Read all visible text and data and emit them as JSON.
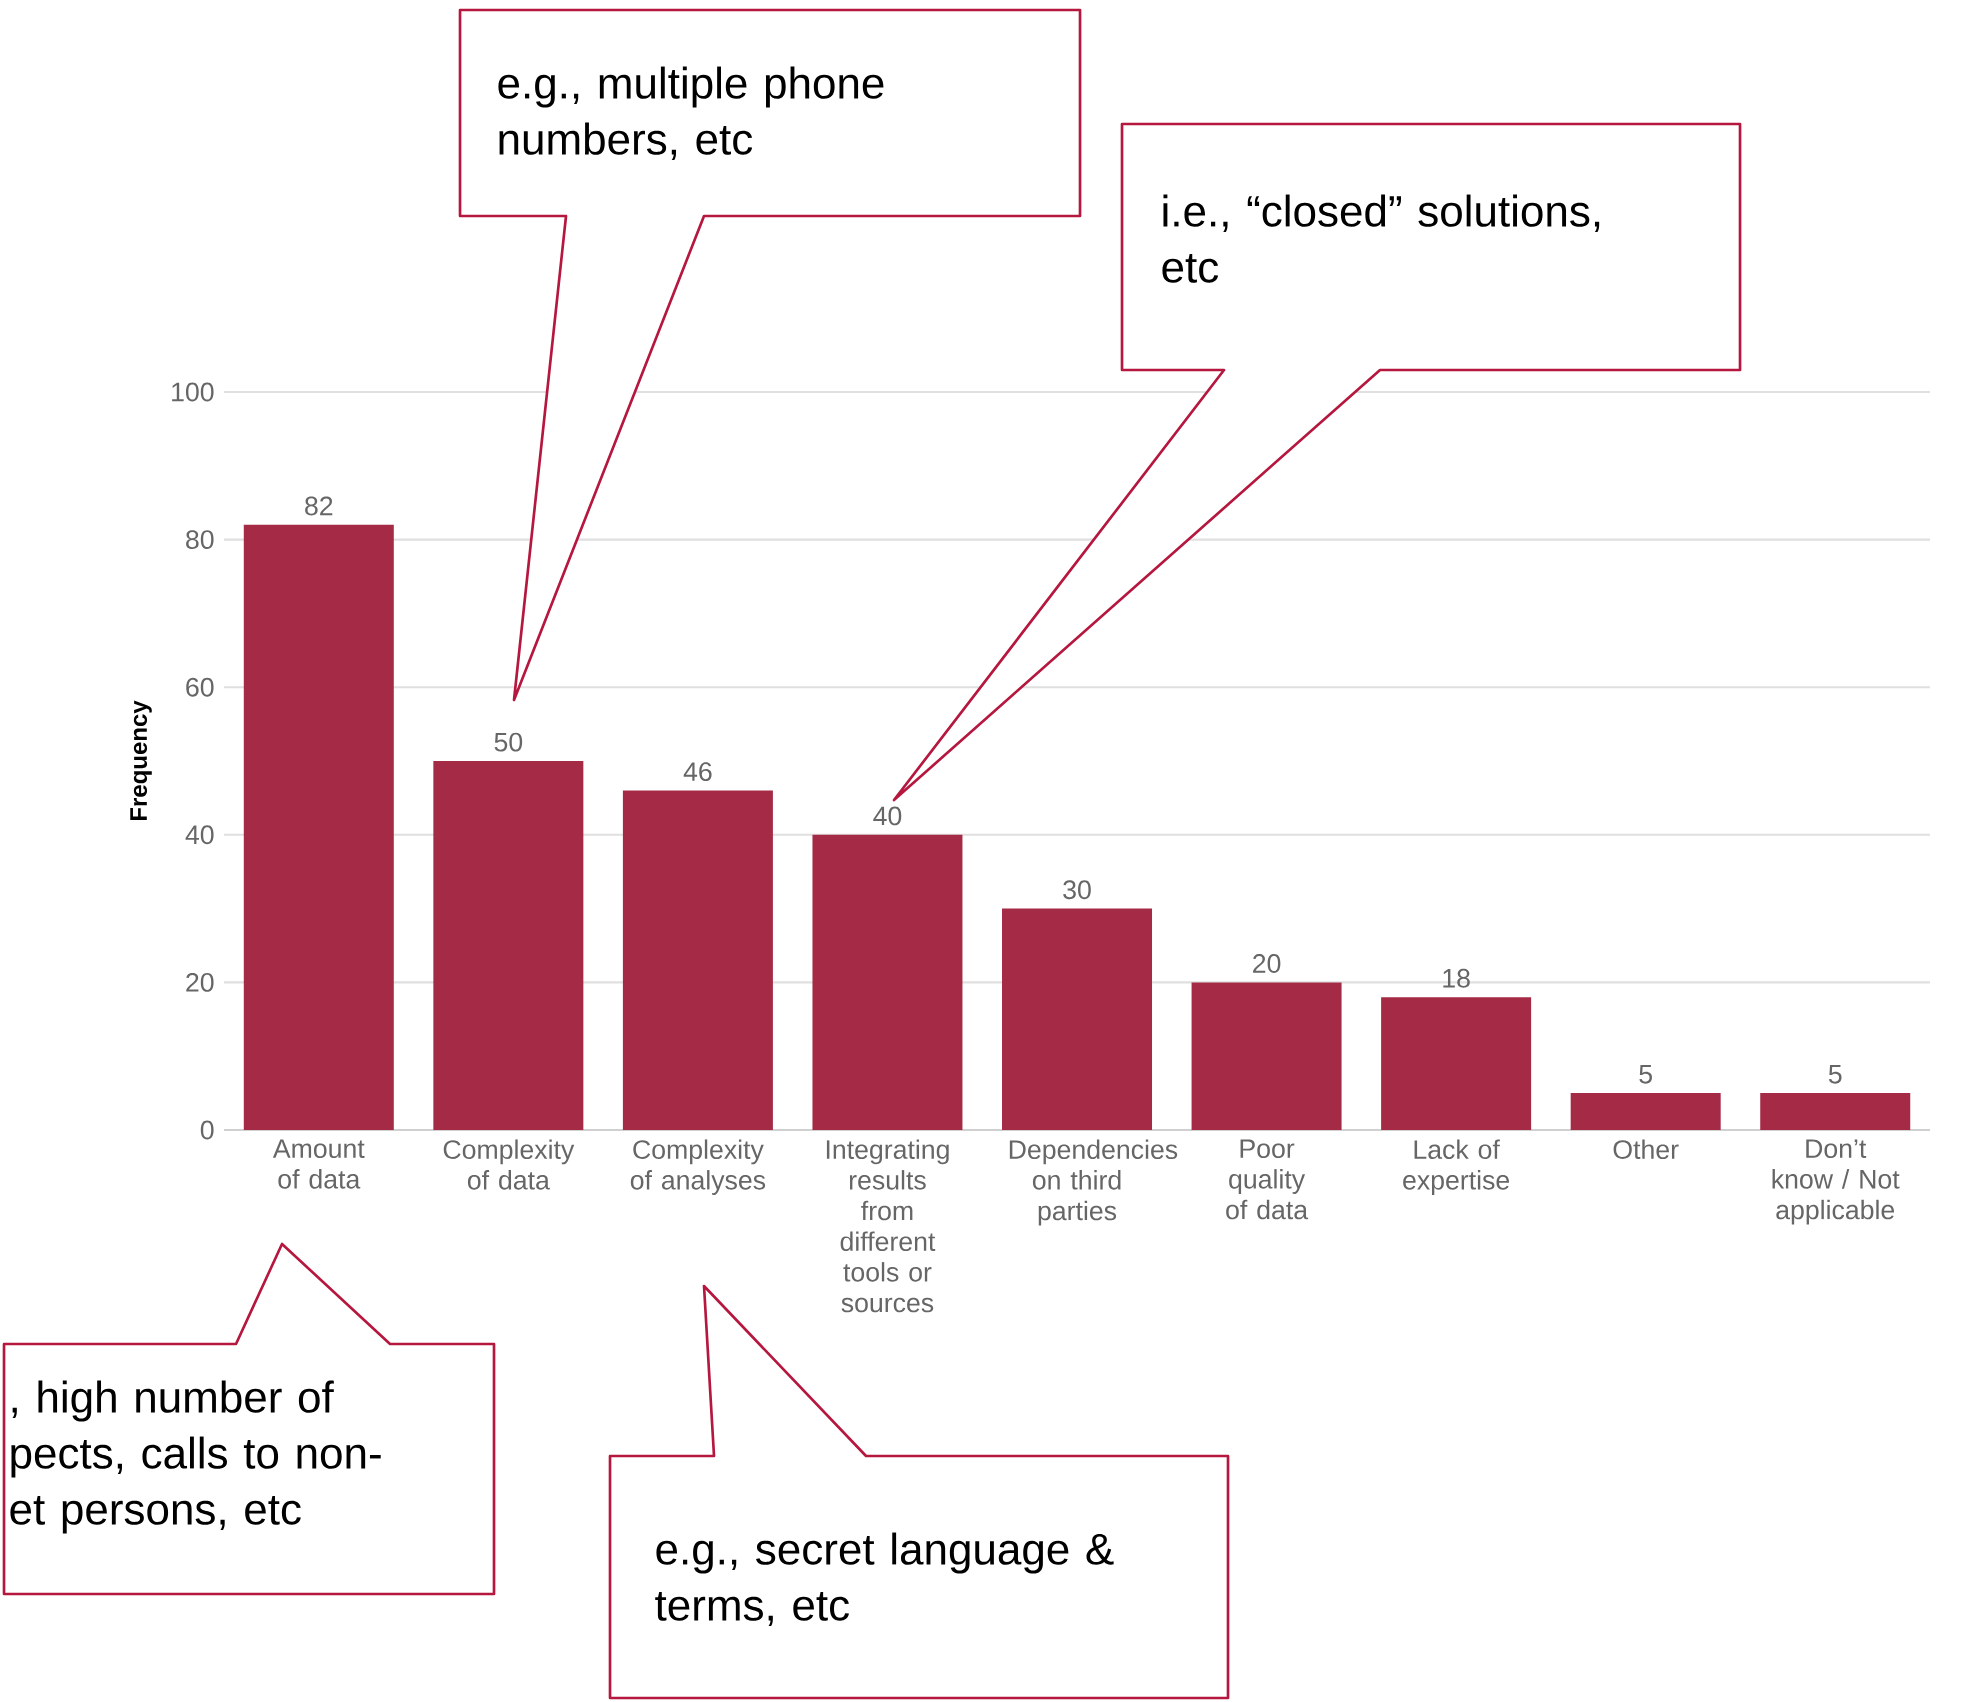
{
  "chart_data": {
    "type": "bar",
    "ylabel": "Frequency",
    "categories": [
      "Amount of data",
      "Complexity of data",
      "Complexity of analyses",
      "Integrating results from different tools or sources",
      "Dependencies on third parties",
      "Poor quality of data",
      "Lack of expertise",
      "Other",
      "Don’t know / Not applicable"
    ],
    "values": [
      82,
      50,
      46,
      40,
      30,
      20,
      18,
      5,
      5
    ],
    "color": "#a52a45",
    "ylim": [
      0,
      100
    ],
    "yticks": [
      0,
      20,
      40,
      60,
      80,
      100
    ],
    "grid": "y",
    "data_labels": true,
    "annotations": [
      "e.g., multiple phone numbers, etc",
      "i.e., “closed” solutions, etc",
      ", high number of pects, calls to non- et persons, etc",
      "e.g., secret language & terms, etc"
    ]
  }
}
